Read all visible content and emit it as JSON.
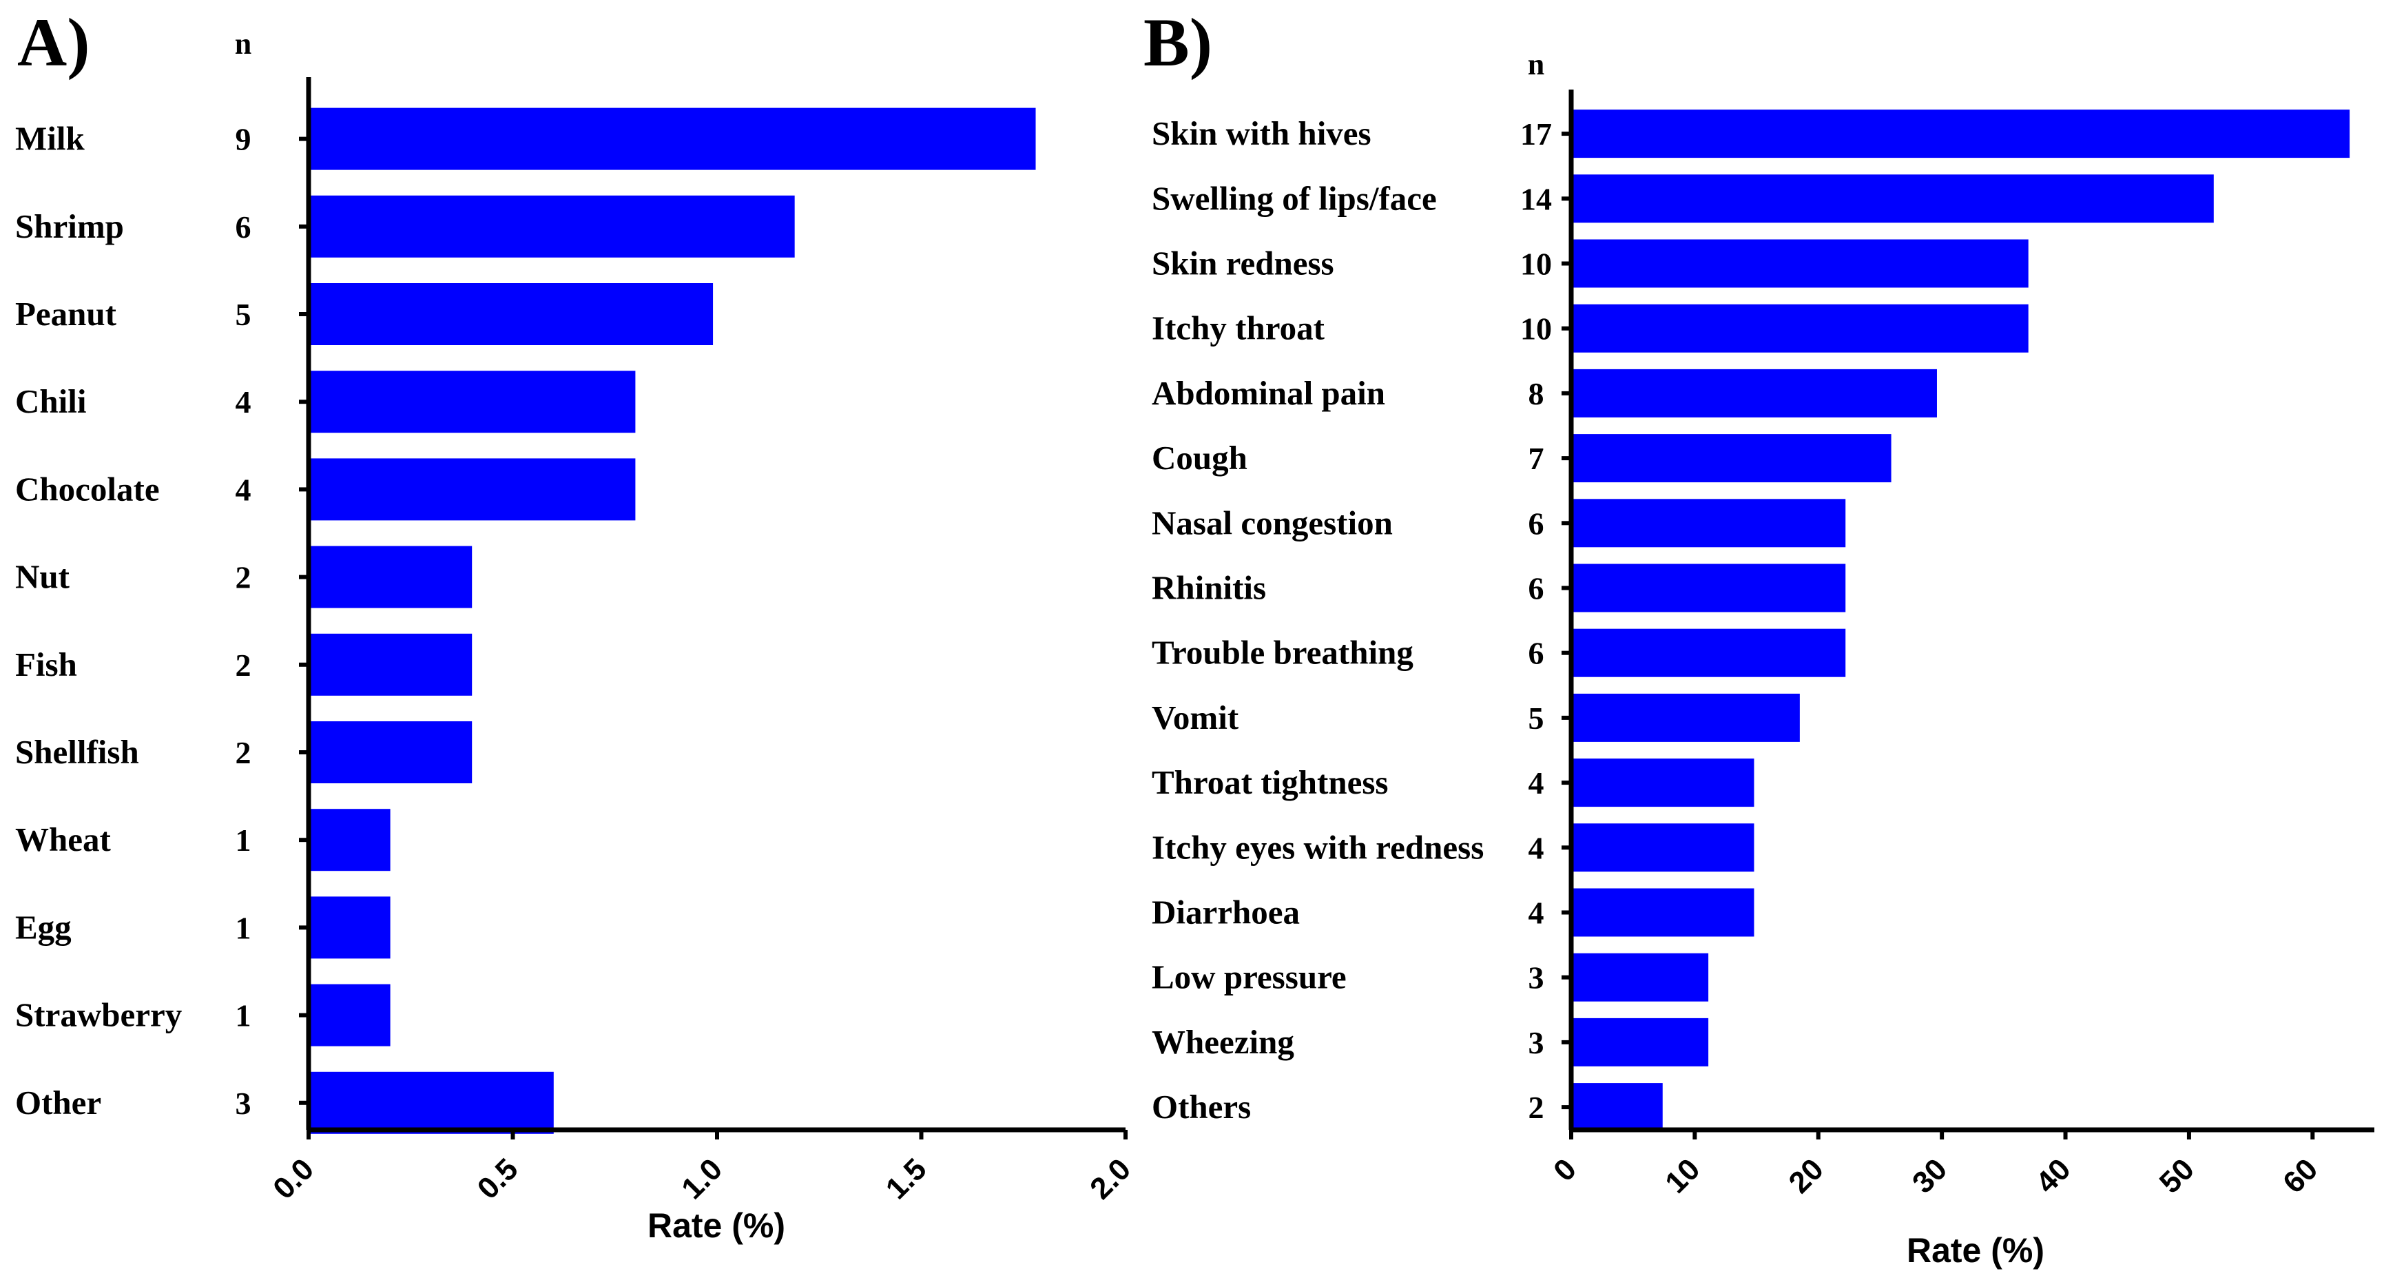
{
  "chart_data": [
    {
      "type": "bar",
      "orientation": "horizontal",
      "panel_label": "A)",
      "n_header": "n",
      "categories": [
        "Milk",
        "Shrimp",
        "Peanut",
        "Chili",
        "Chocolate",
        "Nut",
        "Fish",
        "Shellfish",
        "Wheat",
        "Egg",
        "Strawberry",
        "Other"
      ],
      "n": [
        "9",
        "6",
        "5",
        "4",
        "4",
        "2",
        "2",
        "2",
        "1",
        "1",
        "1",
        "3"
      ],
      "values": [
        1.78,
        1.19,
        0.99,
        0.8,
        0.8,
        0.4,
        0.4,
        0.4,
        0.2,
        0.2,
        0.2,
        0.6
      ],
      "xlim": [
        0,
        2.0
      ],
      "xticks": [
        "0.0",
        "0.5",
        "1.0",
        "1.5",
        "2.0"
      ],
      "xlabel": "Rate (%)",
      "bar_color": "#0000ff"
    },
    {
      "type": "bar",
      "orientation": "horizontal",
      "panel_label": "B)",
      "n_header": "n",
      "categories": [
        "Skin with hives",
        "Swelling of lips/face",
        "Skin redness",
        "Itchy throat",
        "Abdominal pain",
        "Cough",
        "Nasal congestion",
        "Rhinitis",
        "Trouble breathing",
        "Vomit",
        "Throat tightness",
        "Itchy eyes with redness",
        "Diarrhoea",
        "Low pressure",
        "Wheezing",
        "Others"
      ],
      "n": [
        "17",
        "14",
        "10",
        "10",
        "8",
        "7",
        "6",
        "6",
        "6",
        "5",
        "4",
        "4",
        "4",
        "3",
        "3",
        "2"
      ],
      "values": [
        63,
        52,
        37,
        37,
        29.6,
        25.9,
        22.2,
        22.2,
        22.2,
        18.5,
        14.8,
        14.8,
        14.8,
        11.1,
        11.1,
        7.4
      ],
      "xlim": [
        0,
        65
      ],
      "xticks": [
        "0",
        "10",
        "20",
        "30",
        "40",
        "50",
        "60"
      ],
      "xlabel": "Rate (%)",
      "bar_color": "#0000ff"
    }
  ]
}
